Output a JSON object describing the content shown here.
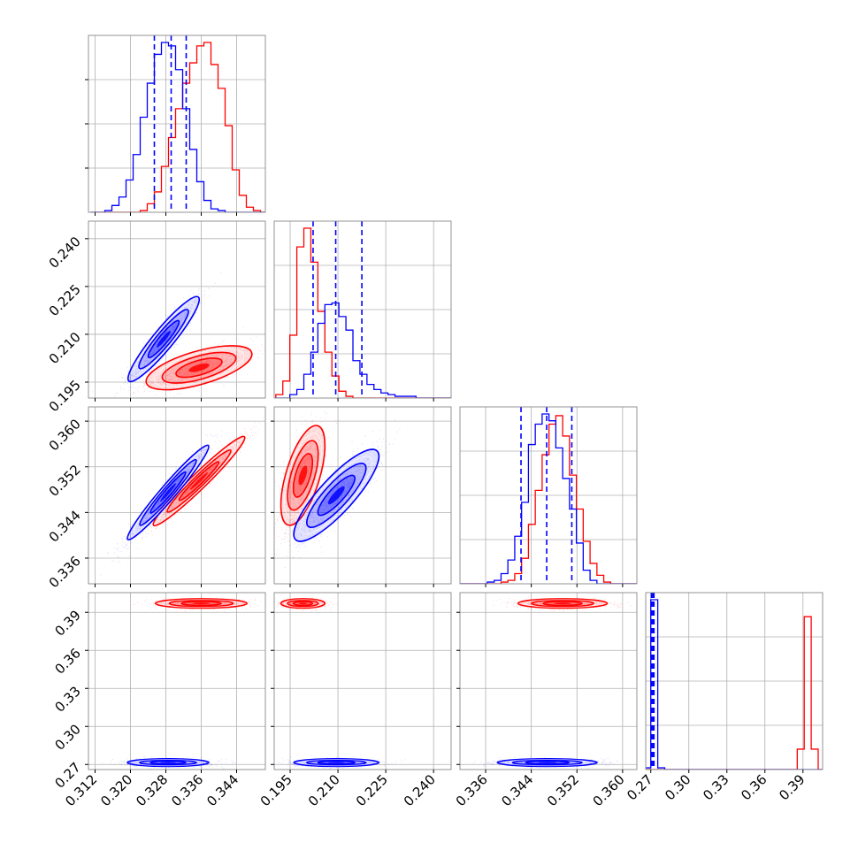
{
  "chart_data": {
    "type": "corner",
    "grid": true,
    "series": [
      {
        "name": "",
        "color": "#0000ff"
      },
      {
        "name": "",
        "color": "#ff0000"
      }
    ],
    "parameters": [
      {
        "ticks": [
          "0.312",
          "0.320",
          "0.328",
          "0.336",
          "0.344"
        ],
        "tick_values": [
          0.312,
          0.32,
          0.328,
          0.336,
          0.344
        ],
        "range": [
          0.3105,
          0.3505
        ]
      },
      {
        "ticks": [
          "0.195",
          "0.210",
          "0.225",
          "0.240"
        ],
        "tick_values": [
          0.195,
          0.21,
          0.225,
          0.24
        ],
        "range": [
          0.19,
          0.2455
        ]
      },
      {
        "ticks": [
          "0.336",
          "0.344",
          "0.352",
          "0.360"
        ],
        "tick_values": [
          0.336,
          0.344,
          0.352,
          0.36
        ],
        "range": [
          0.3315,
          0.3625
        ]
      },
      {
        "ticks": [
          "0.27",
          "0.30",
          "0.33",
          "0.36",
          "0.39"
        ],
        "tick_values": [
          0.27,
          0.3,
          0.33,
          0.36,
          0.39
        ],
        "range": [
          0.266,
          0.4055
        ]
      }
    ],
    "diagonal": [
      {
        "blue_quantiles": [
          0.3254,
          0.3292,
          0.3326
        ],
        "blue_hist": {
          "bin_start": 0.311,
          "bin_width": 0.0016,
          "counts": [
            0,
            0,
            0.01,
            0.04,
            0.09,
            0.19,
            0.34,
            0.56,
            0.76,
            0.93,
            1.0,
            0.98,
            0.84,
            0.61,
            0.37,
            0.18,
            0.07,
            0.02,
            0.01,
            0,
            0,
            0,
            0,
            0,
            0
          ]
        },
        "red_hist": {
          "bin_start": 0.311,
          "bin_width": 0.0016,
          "counts": [
            0,
            0,
            0,
            0,
            0,
            0,
            0,
            0.01,
            0.05,
            0.12,
            0.27,
            0.44,
            0.61,
            0.76,
            0.88,
            0.98,
            1.0,
            0.87,
            0.73,
            0.51,
            0.25,
            0.1,
            0.03,
            0.01,
            0
          ]
        }
      },
      {
        "blue_quantiles": [
          0.2022,
          0.2093,
          0.2175
        ],
        "blue_hist": {
          "bin_start": 0.1905,
          "bin_width": 0.0022,
          "counts": [
            0,
            0,
            0.02,
            0.05,
            0.14,
            0.27,
            0.44,
            0.55,
            0.56,
            0.48,
            0.4,
            0.22,
            0.14,
            0.08,
            0.05,
            0.03,
            0.02,
            0.01,
            0.01,
            0.01,
            0,
            0,
            0,
            0,
            0
          ]
        },
        "red_hist": {
          "bin_start": 0.1905,
          "bin_width": 0.0022,
          "counts": [
            0.02,
            0.1,
            0.37,
            0.89,
            1.0,
            0.8,
            0.51,
            0.27,
            0.13,
            0.04,
            0.01,
            0,
            0,
            0,
            0,
            0,
            0,
            0,
            0,
            0,
            0,
            0,
            0,
            0,
            0
          ]
        }
      },
      {
        "blue_quantiles": [
          0.3422,
          0.3467,
          0.3511
        ],
        "blue_hist": {
          "bin_start": 0.3315,
          "bin_width": 0.0012,
          "counts": [
            0,
            0,
            0,
            0,
            0.01,
            0.02,
            0.06,
            0.14,
            0.28,
            0.48,
            0.82,
            0.94,
            1.0,
            0.96,
            0.8,
            0.62,
            0.44,
            0.24,
            0.08,
            0.02,
            0,
            0,
            0,
            0,
            0,
            0
          ]
        },
        "red_hist": {
          "bin_start": 0.3315,
          "bin_width": 0.0012,
          "counts": [
            0,
            0,
            0,
            0,
            0,
            0,
            0.01,
            0.02,
            0.06,
            0.15,
            0.35,
            0.55,
            0.76,
            0.94,
            0.99,
            0.87,
            0.64,
            0.44,
            0.25,
            0.12,
            0.05,
            0.01,
            0,
            0,
            0,
            0
          ]
        }
      },
      {
        "blue_quantiles": [
          0.2705,
          0.2715,
          0.2725
        ],
        "blue_hist": {
          "bin_start": 0.2645,
          "bin_width": 0.0055,
          "counts": [
            0.01,
            1.0,
            0.01,
            0,
            0,
            0,
            0,
            0,
            0,
            0,
            0,
            0,
            0,
            0,
            0,
            0,
            0,
            0,
            0,
            0,
            0,
            0,
            0,
            0,
            0,
            0
          ]
        },
        "red_hist": {
          "bin_start": 0.2645,
          "bin_width": 0.0055,
          "counts": [
            0,
            0,
            0,
            0,
            0,
            0,
            0,
            0,
            0,
            0,
            0,
            0,
            0,
            0,
            0,
            0,
            0,
            0,
            0,
            0,
            0,
            0,
            0.12,
            0.9,
            0.12,
            0
          ]
        }
      }
    ],
    "pairs": [
      {
        "row": 1,
        "col": 0,
        "blue": {
          "center": [
            0.3275,
            0.2085
          ],
          "sigma": [
            0.0035,
            0.0058
          ],
          "rho": 0.93
        },
        "red": {
          "center": [
            0.3355,
            0.1995
          ],
          "sigma": [
            0.0052,
            0.003
          ],
          "rho": 0.62
        }
      },
      {
        "row": 2,
        "col": 0,
        "blue": {
          "center": [
            0.3285,
            0.3475
          ],
          "sigma": [
            0.004,
            0.0036
          ],
          "rho": 0.97
        },
        "red": {
          "center": [
            0.3355,
            0.3495
          ],
          "sigma": [
            0.0045,
            0.0034
          ],
          "rho": 0.97
        }
      },
      {
        "row": 2,
        "col": 1,
        "blue": {
          "center": [
            0.2095,
            0.347
          ],
          "sigma": [
            0.0058,
            0.0035
          ],
          "rho": 0.85
        },
        "red": {
          "center": [
            0.199,
            0.3505
          ],
          "sigma": [
            0.003,
            0.0038
          ],
          "rho": 0.6
        }
      },
      {
        "row": 3,
        "col": 0,
        "blue": {
          "center": [
            0.3285,
            0.2715
          ],
          "sigma": [
            0.004,
            0.0013
          ],
          "rho": 0.0
        },
        "red": {
          "center": [
            0.336,
            0.397
          ],
          "sigma": [
            0.0045,
            0.0016
          ],
          "rho": 0.0
        }
      },
      {
        "row": 3,
        "col": 1,
        "blue": {
          "center": [
            0.2095,
            0.2715
          ],
          "sigma": [
            0.0058,
            0.0013
          ],
          "rho": 0.0
        },
        "red": {
          "center": [
            0.199,
            0.397
          ],
          "sigma": [
            0.003,
            0.0016
          ],
          "rho": 0.0
        }
      },
      {
        "row": 3,
        "col": 2,
        "blue": {
          "center": [
            0.3468,
            0.2715
          ],
          "sigma": [
            0.0038,
            0.0013
          ],
          "rho": 0.0
        },
        "red": {
          "center": [
            0.3495,
            0.397
          ],
          "sigma": [
            0.0034,
            0.0016
          ],
          "rho": 0.0
        }
      }
    ]
  }
}
